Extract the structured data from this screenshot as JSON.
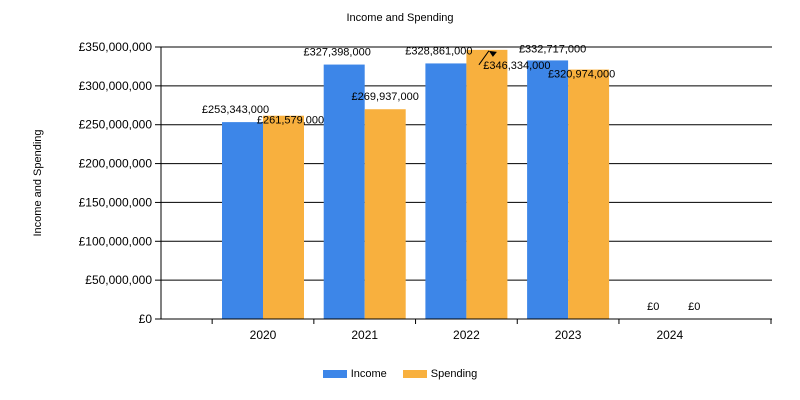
{
  "chart_data": {
    "type": "bar",
    "title": "Income and Spending",
    "xlabel": "",
    "ylabel": "Income and Spending",
    "categories": [
      "2020",
      "2021",
      "2022",
      "2023",
      "2024"
    ],
    "series": [
      {
        "name": "Income",
        "color": "#3d86e8",
        "values": [
          253343000,
          327398000,
          328861000,
          332717000,
          0
        ],
        "labels": [
          "£253,343,000",
          "£327,398,000",
          "£328,861,000",
          "£332,717,000",
          "£0"
        ]
      },
      {
        "name": "Spending",
        "color": "#f8b03e",
        "values": [
          261579000,
          269937000,
          346334000,
          320974000,
          0
        ],
        "labels": [
          "£261,579,000",
          "£269,937,000",
          "£346,334,000",
          "£320,974,000",
          "£0"
        ]
      }
    ],
    "ylim": [
      0,
      350000000
    ],
    "yticks": [
      0,
      50000000,
      100000000,
      150000000,
      200000000,
      250000000,
      300000000,
      350000000
    ],
    "ytick_labels": [
      "£0",
      "£50,000,000",
      "£100,000,000",
      "£150,000,000",
      "£200,000,000",
      "£250,000,000",
      "£300,000,000",
      "£350,000,000"
    ],
    "grid": true,
    "legend_position": "bottom-center"
  }
}
